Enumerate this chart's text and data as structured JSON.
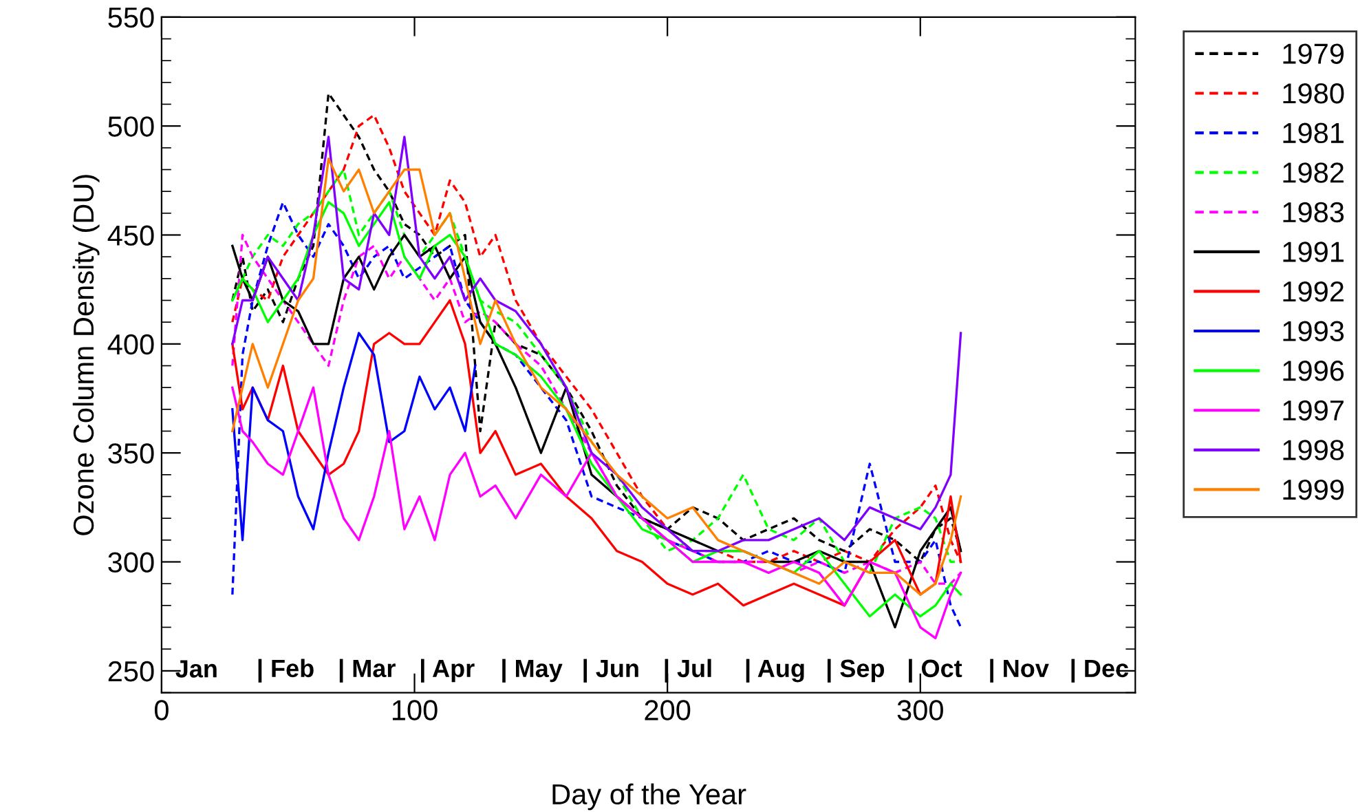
{
  "chart_data": {
    "type": "line",
    "xlabel": "Day of the Year",
    "ylabel": "Ozone Column Density (DU)",
    "xlim": [
      0,
      385
    ],
    "ylim": [
      240,
      550
    ],
    "xticks": [
      0,
      100,
      200,
      300
    ],
    "yticks": [
      250,
      300,
      350,
      400,
      450,
      500,
      550
    ],
    "grid": false,
    "legend": "top right",
    "marker": "none",
    "x": [
      28,
      32,
      36,
      42,
      48,
      54,
      60,
      66,
      72,
      78,
      84,
      90,
      96,
      102,
      108,
      114,
      120,
      126,
      132,
      140,
      150,
      160,
      170,
      180,
      190,
      200,
      210,
      220,
      230,
      240,
      250,
      260,
      270,
      280,
      290,
      300,
      306,
      312,
      316
    ],
    "series": [
      {
        "name": "1979",
        "color": "#000000",
        "line_style": "dashed",
        "values": [
          420,
          440,
          415,
          425,
          410,
          430,
          445,
          515,
          505,
          495,
          480,
          470,
          455,
          450,
          440,
          445,
          450,
          360,
          410,
          400,
          395,
          380,
          360,
          335,
          320,
          315,
          325,
          320,
          310,
          315,
          320,
          310,
          305,
          315,
          310,
          300,
          315,
          320,
          305
        ]
      },
      {
        "name": "1980",
        "color": "#ff0000",
        "line_style": "dashed",
        "values": [
          410,
          430,
          425,
          420,
          440,
          450,
          460,
          470,
          480,
          500,
          505,
          490,
          470,
          460,
          450,
          475,
          465,
          440,
          450,
          420,
          400,
          385,
          370,
          350,
          330,
          315,
          305,
          305,
          300,
          300,
          305,
          300,
          305,
          300,
          315,
          325,
          335,
          310,
          300
        ]
      },
      {
        "name": "1981",
        "color": "#0000ff",
        "line_style": "dashed",
        "values": [
          285,
          395,
          420,
          445,
          465,
          450,
          440,
          455,
          445,
          430,
          440,
          445,
          430,
          435,
          440,
          445,
          420,
          410,
          400,
          395,
          380,
          365,
          330,
          325,
          320,
          310,
          305,
          300,
          300,
          305,
          300,
          300,
          295,
          345,
          300,
          300,
          310,
          280,
          270
        ]
      },
      {
        "name": "1982",
        "color": "#00ff00",
        "line_style": "dashed",
        "values": [
          420,
          430,
          440,
          450,
          445,
          455,
          460,
          470,
          480,
          450,
          460,
          470,
          450,
          440,
          450,
          460,
          440,
          420,
          415,
          410,
          395,
          380,
          355,
          340,
          320,
          305,
          310,
          320,
          340,
          315,
          310,
          320,
          300,
          295,
          320,
          325,
          320,
          300,
          300
        ]
      },
      {
        "name": "1983",
        "color": "#ff00ff",
        "line_style": "dashed",
        "values": [
          390,
          450,
          440,
          430,
          420,
          410,
          400,
          390,
          420,
          440,
          445,
          430,
          440,
          430,
          420,
          430,
          410,
          415,
          410,
          400,
          390,
          370,
          350,
          330,
          320,
          310,
          305,
          300,
          300,
          300,
          295,
          300,
          295,
          300,
          295,
          300,
          290,
          290,
          295
        ]
      },
      {
        "name": "1991",
        "color": "#000000",
        "line_style": "solid",
        "values": [
          445,
          430,
          420,
          440,
          420,
          415,
          400,
          400,
          430,
          440,
          425,
          440,
          450,
          440,
          445,
          430,
          440,
          410,
          400,
          380,
          350,
          380,
          340,
          330,
          320,
          315,
          310,
          305,
          305,
          300,
          300,
          305,
          300,
          300,
          270,
          305,
          315,
          325,
          305
        ]
      },
      {
        "name": "1992",
        "color": "#ff0000",
        "line_style": "solid",
        "values": [
          400,
          370,
          380,
          365,
          390,
          360,
          350,
          340,
          345,
          360,
          400,
          405,
          400,
          400,
          410,
          420,
          400,
          350,
          360,
          340,
          345,
          330,
          320,
          305,
          300,
          290,
          285,
          290,
          280,
          285,
          290,
          285,
          280,
          300,
          310,
          285,
          290,
          330,
          300
        ]
      },
      {
        "name": "1993",
        "color": "#0000ff",
        "line_style": "solid",
        "x": [
          28,
          32,
          36,
          42,
          48,
          54,
          60,
          66,
          72,
          78,
          84,
          90,
          96,
          102,
          108,
          114,
          120,
          124
        ],
        "values": [
          370,
          310,
          380,
          365,
          360,
          330,
          315,
          350,
          380,
          405,
          395,
          355,
          360,
          385,
          370,
          380,
          360,
          390
        ]
      },
      {
        "name": "1996",
        "color": "#00ff00",
        "line_style": "solid",
        "values": [
          420,
          430,
          425,
          410,
          420,
          430,
          450,
          465,
          460,
          445,
          455,
          465,
          440,
          430,
          445,
          450,
          440,
          420,
          400,
          395,
          385,
          370,
          345,
          330,
          315,
          310,
          300,
          305,
          305,
          300,
          295,
          305,
          290,
          275,
          285,
          275,
          280,
          290,
          285
        ]
      },
      {
        "name": "1997",
        "color": "#ff00ff",
        "line_style": "solid",
        "values": [
          380,
          360,
          355,
          345,
          340,
          360,
          380,
          340,
          320,
          310,
          330,
          360,
          315,
          330,
          310,
          340,
          350,
          330,
          335,
          320,
          340,
          330,
          350,
          330,
          320,
          310,
          300,
          300,
          300,
          295,
          300,
          295,
          280,
          300,
          295,
          270,
          265,
          285,
          295
        ]
      },
      {
        "name": "1998",
        "color": "#8000ff",
        "line_style": "solid",
        "values": [
          400,
          420,
          420,
          440,
          430,
          420,
          450,
          495,
          430,
          425,
          460,
          450,
          495,
          440,
          430,
          440,
          420,
          430,
          420,
          415,
          400,
          380,
          350,
          340,
          325,
          315,
          305,
          305,
          310,
          310,
          315,
          320,
          310,
          325,
          320,
          315,
          325,
          340,
          405
        ]
      },
      {
        "name": "1999",
        "color": "#ff8000",
        "line_style": "solid",
        "values": [
          360,
          380,
          400,
          380,
          400,
          420,
          430,
          485,
          470,
          480,
          460,
          470,
          480,
          480,
          450,
          460,
          430,
          400,
          420,
          400,
          380,
          370,
          355,
          340,
          330,
          320,
          325,
          310,
          305,
          300,
          295,
          290,
          300,
          295,
          295,
          285,
          290,
          310,
          330
        ]
      }
    ],
    "annotations": [
      "Jan",
      "| Feb",
      "| Mar",
      "| Apr",
      "| May",
      "| Jun",
      "| Jul",
      "| Aug",
      "| Sep",
      "| Oct",
      "| Nov",
      "| Dec"
    ]
  }
}
